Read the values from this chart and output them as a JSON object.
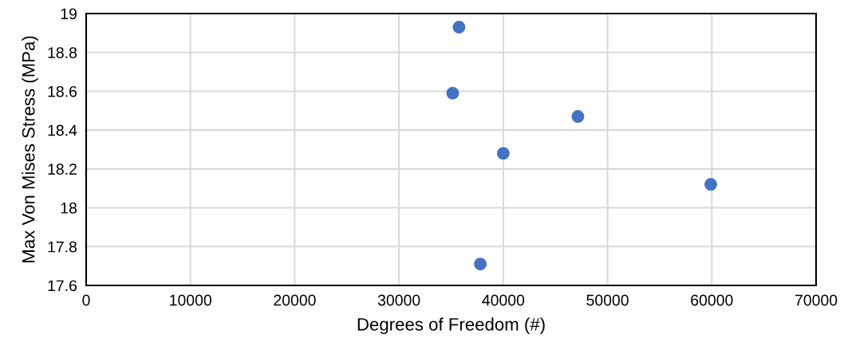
{
  "chart_data": {
    "type": "scatter",
    "xlabel": "Degrees of Freedom (#)",
    "ylabel": "Max Von Mises Stress (MPa)",
    "x": [
      35760,
      35150,
      47160,
      40000,
      37800,
      59900
    ],
    "values": [
      18.93,
      18.59,
      18.47,
      18.28,
      17.71,
      18.12
    ],
    "color": "#4472c4",
    "marker": "circle",
    "xlim": [
      0,
      70000
    ],
    "xticks": [
      0,
      10000,
      20000,
      30000,
      40000,
      50000,
      60000,
      70000
    ],
    "ylim": [
      17.6,
      19
    ],
    "yticks": [
      {
        "value": 17.6,
        "label": "17.6"
      },
      {
        "value": 17.8,
        "label": "17.8"
      },
      {
        "value": 18.0,
        "label": "18"
      },
      {
        "value": 18.2,
        "label": "18.2"
      },
      {
        "value": 18.4,
        "label": "18.4"
      },
      {
        "value": 18.6,
        "label": "18.6"
      },
      {
        "value": 18.8,
        "label": "18.8"
      },
      {
        "value": 19,
        "label": "19"
      }
    ],
    "grid": true
  }
}
